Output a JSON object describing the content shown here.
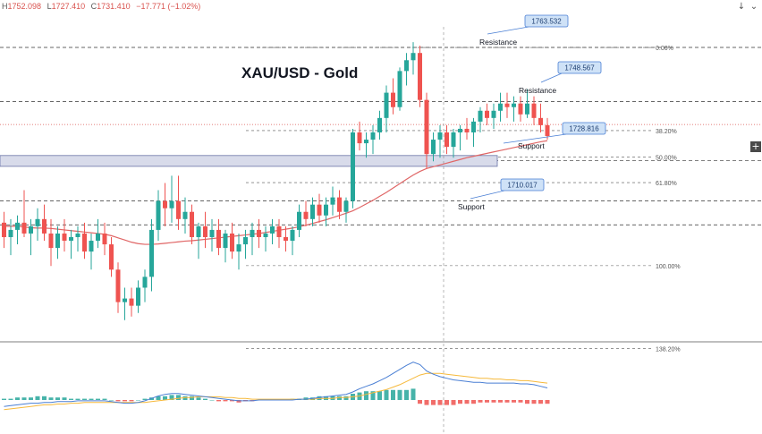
{
  "ohlc": {
    "open_label": "H",
    "open": "1752.098",
    "low_label": "L",
    "low": "1727.410",
    "close_label": "C",
    "close": "1731.410",
    "change": "−17.771 (−1.02%)"
  },
  "controls": {
    "down_glyph": "↓",
    "settings_glyph": "⌄",
    "plus_glyph": "+"
  },
  "chart_data": {
    "type": "candlestick",
    "title": "XAU/USD - Gold",
    "price_range": [
      1682,
      1768
    ],
    "candles": [
      [
        1715,
        1718,
        1708,
        1711
      ],
      [
        1711,
        1716,
        1706,
        1713
      ],
      [
        1713,
        1717,
        1709,
        1715
      ],
      [
        1715,
        1724,
        1711,
        1712
      ],
      [
        1712,
        1716,
        1706,
        1714
      ],
      [
        1714,
        1719,
        1710,
        1716
      ],
      [
        1716,
        1720,
        1710,
        1712
      ],
      [
        1712,
        1716,
        1703,
        1708
      ],
      [
        1708,
        1714,
        1705,
        1712
      ],
      [
        1712,
        1716,
        1707,
        1710
      ],
      [
        1710,
        1713,
        1705,
        1711
      ],
      [
        1711,
        1714,
        1707,
        1712
      ],
      [
        1712,
        1715,
        1705,
        1707
      ],
      [
        1707,
        1712,
        1702,
        1710
      ],
      [
        1710,
        1716,
        1708,
        1712
      ],
      [
        1712,
        1715,
        1706,
        1709
      ],
      [
        1709,
        1711,
        1700,
        1702
      ],
      [
        1702,
        1704,
        1690,
        1693
      ],
      [
        1693,
        1697,
        1688,
        1694
      ],
      [
        1694,
        1697,
        1689,
        1692
      ],
      [
        1692,
        1699,
        1690,
        1697
      ],
      [
        1697,
        1702,
        1693,
        1700
      ],
      [
        1700,
        1716,
        1696,
        1713
      ],
      [
        1713,
        1724,
        1710,
        1721
      ],
      [
        1721,
        1726,
        1714,
        1719
      ],
      [
        1719,
        1728,
        1715,
        1721
      ],
      [
        1721,
        1728,
        1713,
        1716
      ],
      [
        1716,
        1722,
        1712,
        1718
      ],
      [
        1718,
        1720,
        1709,
        1711
      ],
      [
        1711,
        1715,
        1705,
        1714
      ],
      [
        1714,
        1718,
        1708,
        1711
      ],
      [
        1711,
        1716,
        1707,
        1713
      ],
      [
        1713,
        1716,
        1706,
        1708
      ],
      [
        1708,
        1713,
        1704,
        1712
      ],
      [
        1712,
        1715,
        1705,
        1707
      ],
      [
        1707,
        1712,
        1702,
        1709
      ],
      [
        1709,
        1713,
        1705,
        1711
      ],
      [
        1711,
        1715,
        1706,
        1713
      ],
      [
        1713,
        1716,
        1708,
        1711
      ],
      [
        1711,
        1714,
        1707,
        1712
      ],
      [
        1712,
        1716,
        1709,
        1714
      ],
      [
        1714,
        1716,
        1708,
        1711
      ],
      [
        1711,
        1714,
        1707,
        1710
      ],
      [
        1710,
        1714,
        1706,
        1713
      ],
      [
        1713,
        1720,
        1711,
        1718
      ],
      [
        1718,
        1721,
        1714,
        1716
      ],
      [
        1716,
        1722,
        1714,
        1720
      ],
      [
        1720,
        1723,
        1715,
        1717
      ],
      [
        1717,
        1722,
        1714,
        1720
      ],
      [
        1720,
        1725,
        1717,
        1722
      ],
      [
        1722,
        1724,
        1716,
        1718
      ],
      [
        1718,
        1722,
        1715,
        1721
      ],
      [
        1721,
        1741,
        1719,
        1740
      ],
      [
        1740,
        1743,
        1735,
        1737
      ],
      [
        1737,
        1740,
        1733,
        1738
      ],
      [
        1738,
        1742,
        1734,
        1740
      ],
      [
        1740,
        1746,
        1738,
        1744
      ],
      [
        1744,
        1753,
        1740,
        1751
      ],
      [
        1751,
        1755,
        1745,
        1747
      ],
      [
        1747,
        1758,
        1746,
        1757
      ],
      [
        1757,
        1762,
        1753,
        1760
      ],
      [
        1760,
        1765,
        1756,
        1762
      ],
      [
        1762,
        1764,
        1747,
        1749
      ],
      [
        1749,
        1751,
        1730,
        1734
      ],
      [
        1734,
        1740,
        1732,
        1738
      ],
      [
        1738,
        1742,
        1733,
        1740
      ],
      [
        1740,
        1742,
        1734,
        1736
      ],
      [
        1736,
        1741,
        1733,
        1740
      ],
      [
        1740,
        1742,
        1735,
        1741
      ],
      [
        1741,
        1744,
        1738,
        1740
      ],
      [
        1740,
        1744,
        1736,
        1743
      ],
      [
        1743,
        1747,
        1740,
        1746
      ],
      [
        1746,
        1748,
        1742,
        1744
      ],
      [
        1744,
        1748,
        1741,
        1746
      ],
      [
        1746,
        1751,
        1743,
        1748
      ],
      [
        1748,
        1751,
        1744,
        1747
      ],
      [
        1747,
        1750,
        1743,
        1748
      ],
      [
        1748,
        1750,
        1743,
        1745
      ],
      [
        1745,
        1752,
        1744,
        1748
      ],
      [
        1748,
        1750,
        1742,
        1744
      ],
      [
        1744,
        1748,
        1740,
        1742
      ],
      [
        1742,
        1744,
        1738,
        1739
      ]
    ],
    "moving_average": [
      1714,
      1714,
      1714,
      1713.8,
      1713.6,
      1713.5,
      1713.5,
      1713.4,
      1713.2,
      1713,
      1712.8,
      1712.6,
      1712.4,
      1712.2,
      1712,
      1711.8,
      1711.4,
      1710.8,
      1710.2,
      1709.6,
      1709.2,
      1709,
      1709,
      1709.1,
      1709.3,
      1709.5,
      1709.7,
      1709.9,
      1710,
      1710.2,
      1710.4,
      1710.6,
      1710.8,
      1711,
      1711.2,
      1711.4,
      1711.6,
      1711.8,
      1712,
      1712.3,
      1712.6,
      1712.9,
      1713.2,
      1713.5,
      1713.9,
      1714.3,
      1714.8,
      1715.3,
      1715.8,
      1716.4,
      1717,
      1717.6,
      1718.3,
      1719.2,
      1720.2,
      1721.2,
      1722.3,
      1723.4,
      1724.6,
      1725.8,
      1727,
      1728.2,
      1729.2,
      1730,
      1730.5,
      1731,
      1731.5,
      1732,
      1732.5,
      1733,
      1733.4,
      1733.8,
      1734.2,
      1734.6,
      1735,
      1735.4,
      1735.8,
      1736.2,
      1736.6,
      1737,
      1737.4,
      1737.7
    ],
    "fibonacci_levels": [
      {
        "label": "0.00%",
        "price": 1763.532
      },
      {
        "label": "38.20%",
        "price": 1740.5
      },
      {
        "label": "50.00%",
        "price": 1733.2
      },
      {
        "label": "61.80%",
        "price": 1726.1
      },
      {
        "label": "100.00%",
        "price": 1703.1
      },
      {
        "label": "138.20%",
        "price": 1680.2
      }
    ],
    "horizontal_levels": [
      {
        "price": 1763.532,
        "style": "dashed"
      },
      {
        "price": 1748.567,
        "style": "dashed"
      },
      {
        "price": 1742.2,
        "style": "dotted-red"
      },
      {
        "price": 1732.2,
        "style": "dashed"
      },
      {
        "price": 1721,
        "style": "dashed"
      },
      {
        "price": 1714.4,
        "style": "dashed"
      }
    ],
    "callouts": [
      "1763.532",
      "1748.567",
      "1728.816",
      "1710.017"
    ],
    "annotations": [
      "Resistance",
      "Resistance",
      "Support",
      "Support"
    ],
    "macd": {
      "histogram": [
        1,
        1,
        2,
        2,
        2,
        3,
        3,
        2,
        2,
        2,
        1,
        1,
        1,
        1,
        1,
        1,
        0,
        -1,
        -1,
        -1,
        0,
        1,
        2,
        3,
        3,
        4,
        4,
        3,
        3,
        2,
        1,
        0,
        -1,
        -1,
        -1,
        -2,
        -1,
        -1,
        0,
        0,
        0,
        0,
        0,
        1,
        1,
        2,
        2,
        3,
        3,
        3,
        3,
        3,
        5,
        6,
        7,
        7,
        7,
        8,
        8,
        8,
        8,
        9,
        -3,
        -4,
        -4,
        -4,
        -4,
        -4,
        -3,
        -3,
        -3,
        -2,
        -2,
        -2,
        -2,
        -2,
        -2,
        -2,
        -3,
        -3,
        -3,
        -3
      ],
      "macd_line": [
        -8,
        -7,
        -6,
        -5,
        -4,
        -4,
        -3,
        -3,
        -2,
        -2,
        -2,
        -1,
        -1,
        -1,
        -1,
        -1,
        -2,
        -3,
        -4,
        -4,
        -3,
        -1,
        2,
        5,
        7,
        8,
        8,
        7,
        6,
        5,
        4,
        3,
        2,
        1,
        0,
        -1,
        -1,
        -1,
        0,
        0,
        0,
        0,
        0,
        0,
        1,
        1,
        2,
        3,
        4,
        5,
        6,
        7,
        10,
        14,
        17,
        20,
        24,
        28,
        33,
        38,
        43,
        47,
        44,
        36,
        32,
        29,
        27,
        25,
        24,
        23,
        22,
        22,
        21,
        21,
        21,
        21,
        21,
        20,
        20,
        19,
        17,
        15
      ],
      "signal_line": [
        -12,
        -11,
        -10,
        -9,
        -8,
        -7,
        -6,
        -6,
        -5,
        -5,
        -4,
        -4,
        -3,
        -3,
        -3,
        -3,
        -3,
        -3,
        -3,
        -3,
        -3,
        -3,
        -2,
        -1,
        0,
        1,
        2,
        3,
        3,
        4,
        4,
        4,
        4,
        3,
        3,
        2,
        2,
        1,
        1,
        1,
        1,
        1,
        1,
        1,
        1,
        1,
        1,
        2,
        2,
        2,
        3,
        3,
        4,
        5,
        7,
        9,
        11,
        13,
        16,
        19,
        23,
        27,
        31,
        33,
        33,
        33,
        32,
        31,
        30,
        29,
        28,
        27,
        27,
        26,
        26,
        25,
        25,
        24,
        24,
        23,
        22,
        21
      ]
    }
  },
  "colors": {
    "up": "#26a69a",
    "down": "#ef5350",
    "ma": "#e06666",
    "macd_line": "#4a7fd4",
    "signal_line": "#f6b93b",
    "callout_fill": "#cfe2f7",
    "callout_border": "#4a7fd4",
    "support_band": "#d8dbea"
  }
}
